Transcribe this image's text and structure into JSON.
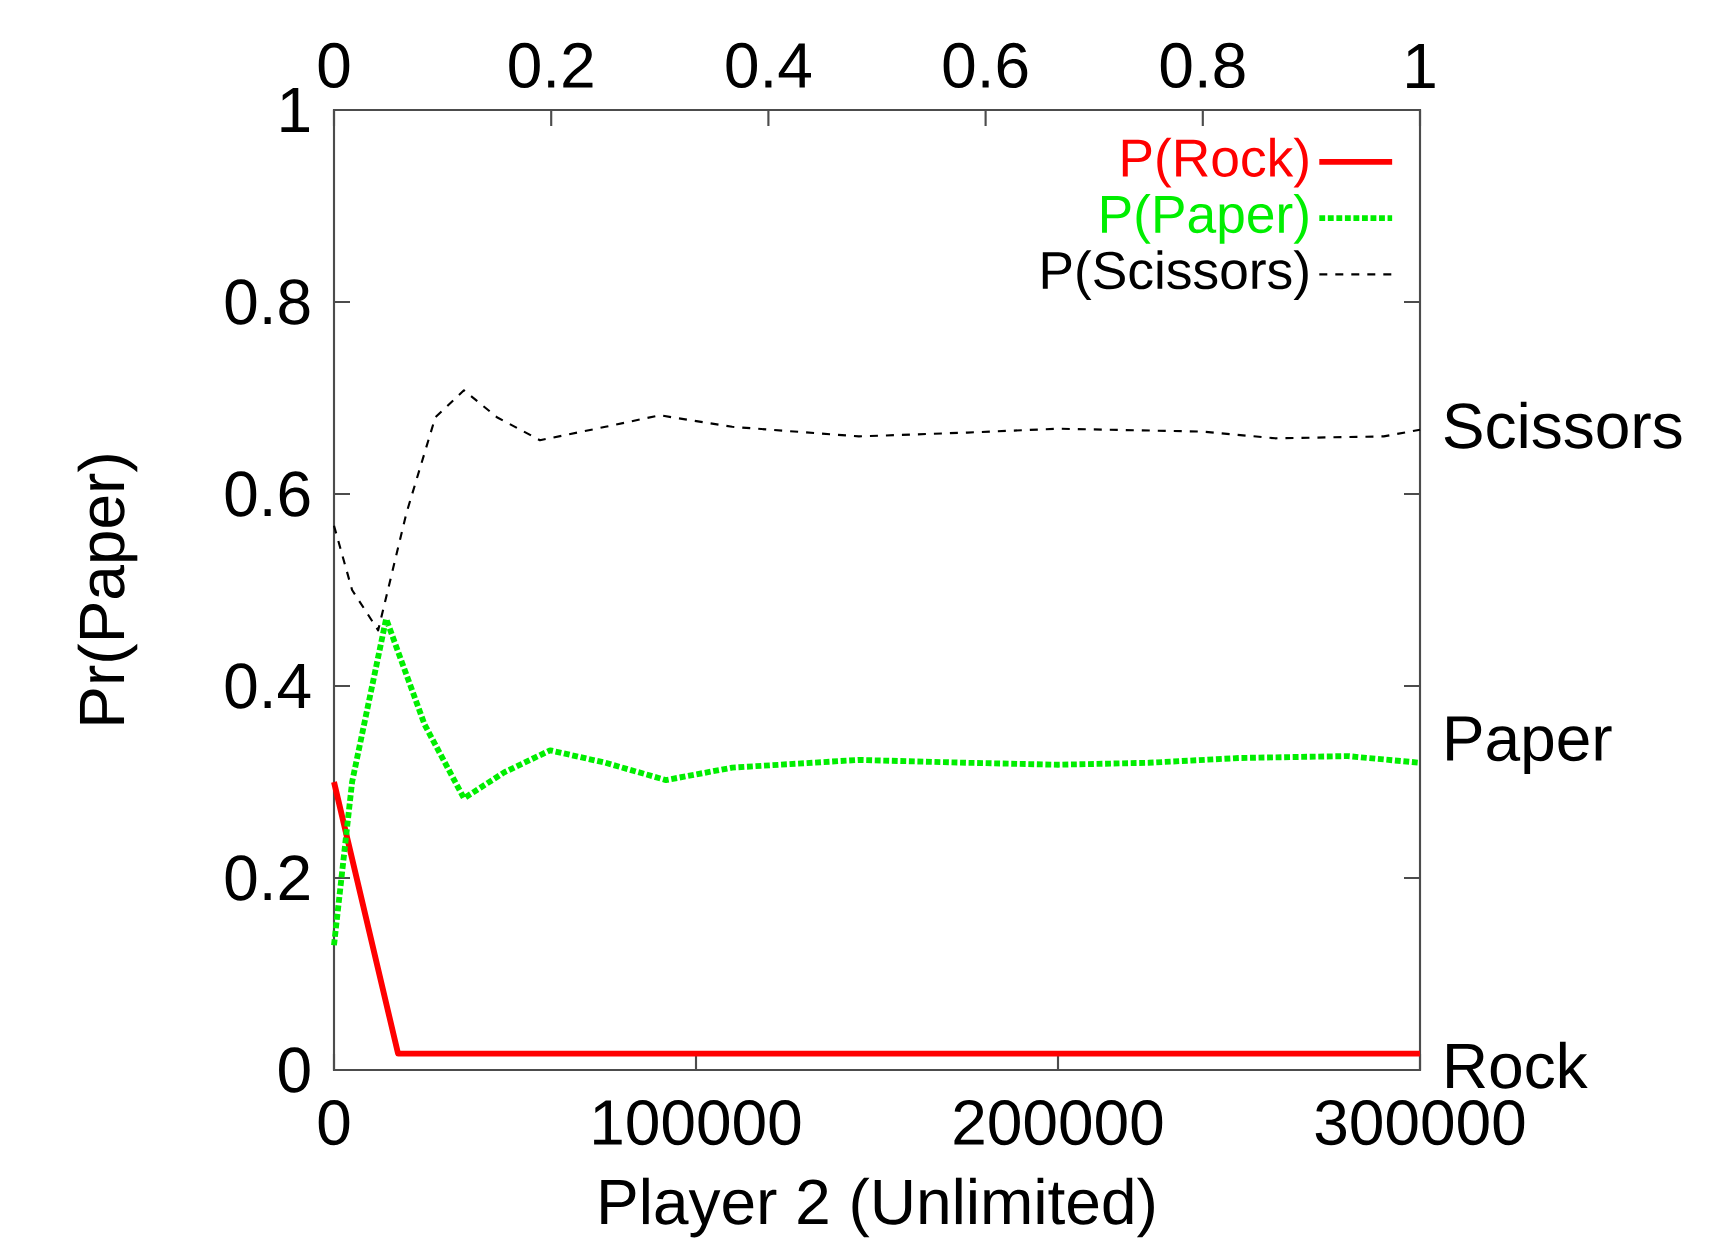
{
  "chart_data": {
    "type": "line",
    "xlabel": "Player 2 (Unlimited)",
    "ylabel": "Pr(Paper)",
    "xlim": [
      0,
      300000
    ],
    "xticks": [
      0,
      100000,
      200000,
      300000
    ],
    "ylim": [
      0,
      1
    ],
    "yticks": [
      0,
      0.2,
      0.4,
      0.6,
      0.8,
      1
    ],
    "x2lim": [
      0,
      1
    ],
    "x2ticks": [
      0,
      0.2,
      0.4,
      0.6,
      0.8,
      1
    ],
    "annotations": [
      "Scissors",
      "Paper",
      "Rock"
    ],
    "legend": "top right",
    "grid": false,
    "series": [
      {
        "name": "P(Rock)",
        "color": "#ff0000",
        "line_style": "solid",
        "x": [
          0,
          17700,
          300000
        ],
        "values": [
          0.3,
          0.017,
          0.017
        ]
      },
      {
        "name": "P(Paper)",
        "color": "#00ee00",
        "line_style": "dotted",
        "x": [
          0,
          5000,
          14400,
          25000,
          35900,
          47000,
          59700,
          75000,
          91700,
          110000,
          145000,
          175000,
          200000,
          225000,
          250000,
          280000,
          300000
        ],
        "values": [
          0.13,
          0.3,
          0.47,
          0.36,
          0.283,
          0.31,
          0.333,
          0.32,
          0.302,
          0.315,
          0.323,
          0.32,
          0.318,
          0.32,
          0.325,
          0.327,
          0.32
        ]
      },
      {
        "name": "P(Scissors)",
        "color": "#000000",
        "line_style": "dashed",
        "x": [
          0,
          5000,
          12200,
          20000,
          28000,
          35900,
          45000,
          56900,
          75000,
          90000,
          110000,
          145000,
          175000,
          200000,
          240000,
          260000,
          290000,
          300000
        ],
        "values": [
          0.567,
          0.5,
          0.458,
          0.58,
          0.68,
          0.708,
          0.68,
          0.656,
          0.67,
          0.682,
          0.67,
          0.66,
          0.664,
          0.668,
          0.665,
          0.658,
          0.66,
          0.667
        ]
      }
    ]
  }
}
